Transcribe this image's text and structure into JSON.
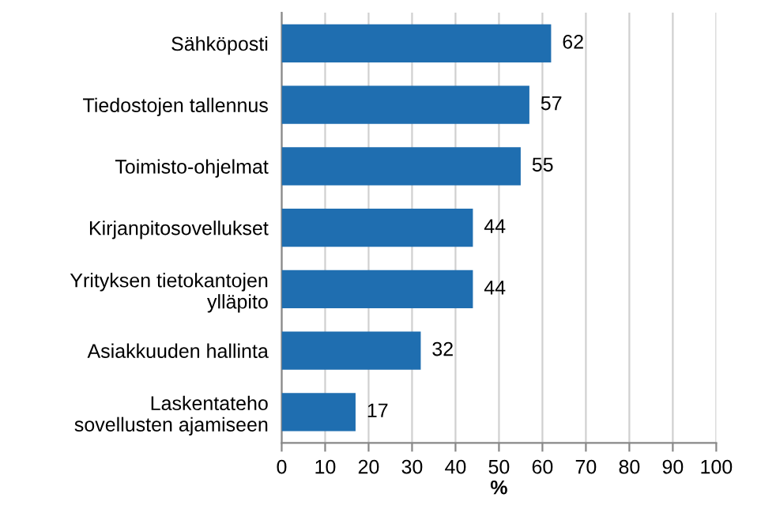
{
  "chart_data": {
    "type": "bar",
    "orientation": "horizontal",
    "xlabel": "%",
    "categories": [
      "Sähköposti",
      "Tiedostojen tallennus",
      "Toimisto-ohjelmat",
      "Kirjanpitosovellukset",
      "Yrityksen tietokantojen\nylläpito",
      "Asiakkuuden hallinta",
      "Laskentateho\nsovellusten ajamiseen"
    ],
    "values": [
      62,
      57,
      55,
      44,
      44,
      32,
      17
    ],
    "color": "#1f6eb0",
    "xlim": [
      0,
      100
    ],
    "xticks": [
      0,
      10,
      20,
      30,
      40,
      50,
      60,
      70,
      80,
      90,
      100
    ],
    "grid": "x",
    "data_labels": true
  }
}
